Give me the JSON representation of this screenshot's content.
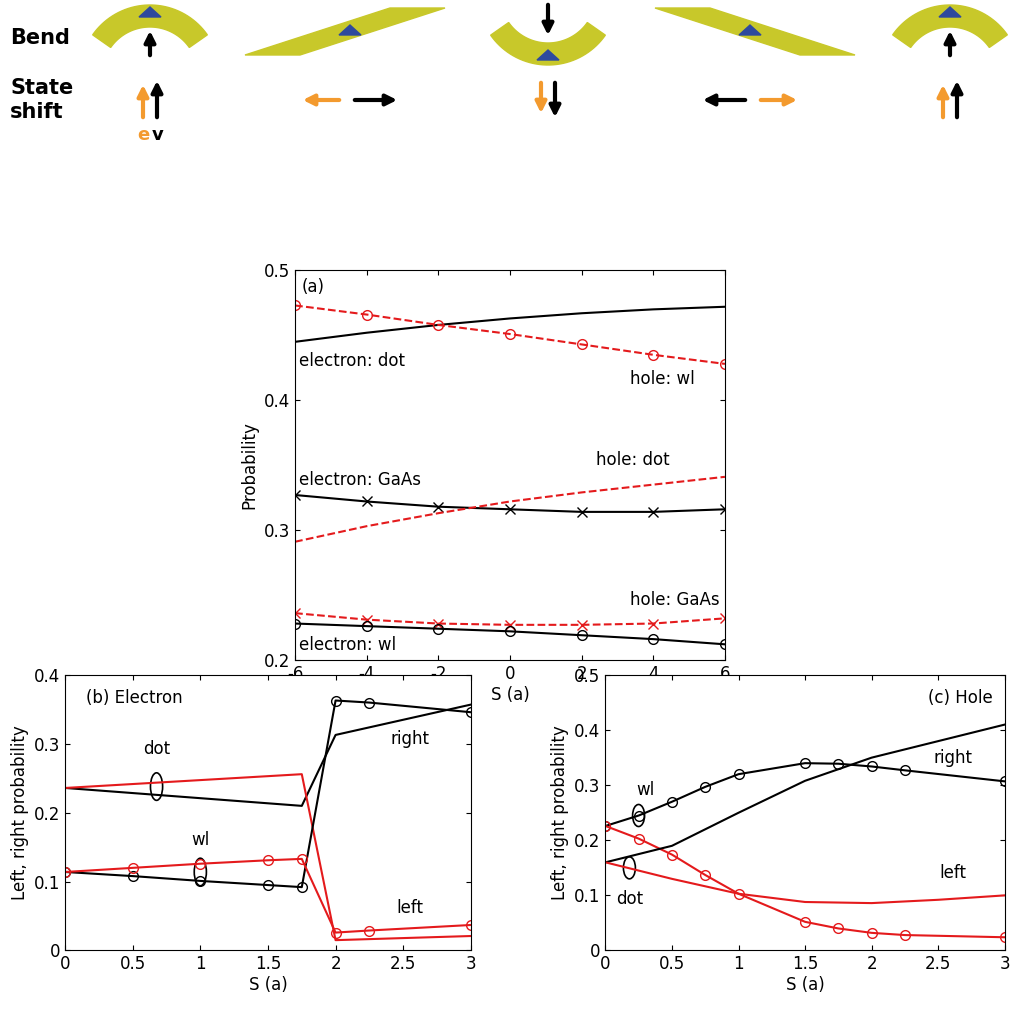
{
  "diagram": {
    "row_labels": [
      "Bend",
      "State\nshift"
    ],
    "state_labels": [
      {
        "text": "e",
        "color": "#f39a2e"
      },
      {
        "text": "v",
        "color": "#000000"
      }
    ]
  },
  "chart_data": [
    {
      "type": "line",
      "title": "(a)",
      "x_label": "S (a)",
      "y_label": "Probability",
      "x": [
        -6,
        -4,
        -2,
        0,
        2,
        4,
        6
      ],
      "xlim": [
        -6,
        6
      ],
      "xticks": [
        -6,
        -4,
        -2,
        0,
        2,
        4,
        6
      ],
      "ylim": [
        0.2,
        0.5
      ],
      "yticks": [
        0.2,
        0.3,
        0.4,
        0.5
      ],
      "series": [
        {
          "name": "electron: dot",
          "color": "#000000",
          "line_style": "solid",
          "marker": "none",
          "values": [
            0.445,
            0.452,
            0.458,
            0.463,
            0.467,
            0.47,
            0.472
          ]
        },
        {
          "name": "hole: wl",
          "color": "#e41a1c",
          "line_style": "dashed",
          "marker": "circle",
          "values": [
            0.473,
            0.466,
            0.458,
            0.451,
            0.443,
            0.435,
            0.428
          ]
        },
        {
          "name": "electron: GaAs",
          "color": "#000000",
          "line_style": "solid",
          "marker": "x",
          "values": [
            0.327,
            0.322,
            0.318,
            0.316,
            0.314,
            0.314,
            0.316
          ]
        },
        {
          "name": "hole: dot",
          "color": "#e41a1c",
          "line_style": "dashed",
          "marker": "none",
          "values": [
            0.291,
            0.303,
            0.313,
            0.322,
            0.329,
            0.335,
            0.341
          ]
        },
        {
          "name": "hole: GaAs",
          "color": "#e41a1c",
          "line_style": "dashed",
          "marker": "x",
          "values": [
            0.236,
            0.231,
            0.228,
            0.227,
            0.227,
            0.228,
            0.232
          ]
        },
        {
          "name": "electron: wl",
          "color": "#000000",
          "line_style": "solid",
          "marker": "circle",
          "values": [
            0.228,
            0.226,
            0.224,
            0.222,
            0.219,
            0.216,
            0.212
          ]
        }
      ]
    },
    {
      "type": "line",
      "title": "(b) Electron",
      "x_label": "S (a)",
      "y_label": "Left, right probability",
      "xlim": [
        0,
        3
      ],
      "xticks": [
        0,
        0.5,
        1,
        1.5,
        2,
        2.5,
        3
      ],
      "ylim": [
        0,
        0.4
      ],
      "yticks": [
        0,
        0.1,
        0.2,
        0.3,
        0.4
      ],
      "annotations": [
        "dot",
        "wl",
        "right",
        "left"
      ],
      "series": [
        {
          "color": "#000000",
          "line_style": "solid",
          "marker": "none",
          "x": [
            0,
            1.75,
            2,
            3
          ],
          "values": [
            0.236,
            0.21,
            0.313,
            0.357
          ]
        },
        {
          "color": "#e41a1c",
          "line_style": "solid",
          "marker": "none",
          "x": [
            0,
            1.75,
            2,
            3
          ],
          "values": [
            0.236,
            0.256,
            0.015,
            0.021
          ]
        },
        {
          "color": "#000000",
          "line_style": "solid",
          "marker": "circle",
          "x": [
            0,
            0.5,
            1,
            1.5,
            1.75,
            2,
            2.25,
            3
          ],
          "values": [
            0.114,
            0.108,
            0.101,
            0.095,
            0.092,
            0.363,
            0.36,
            0.346
          ]
        },
        {
          "color": "#e41a1c",
          "line_style": "solid",
          "marker": "circle",
          "x": [
            0,
            0.5,
            1,
            1.5,
            1.75,
            2,
            2.25,
            3
          ],
          "values": [
            0.114,
            0.12,
            0.126,
            0.131,
            0.133,
            0.026,
            0.029,
            0.037
          ]
        }
      ]
    },
    {
      "type": "line",
      "title": "(c) Hole",
      "x_label": "S (a)",
      "y_label": "Left, right probability",
      "xlim": [
        0,
        3
      ],
      "xticks": [
        0,
        0.5,
        1,
        1.5,
        2,
        2.5,
        3
      ],
      "ylim": [
        0,
        0.5
      ],
      "yticks": [
        0,
        0.1,
        0.2,
        0.3,
        0.4,
        0.5
      ],
      "annotations": [
        "wl",
        "dot",
        "right",
        "left"
      ],
      "series": [
        {
          "color": "#000000",
          "line_style": "solid",
          "marker": "circle",
          "x": [
            0,
            0.25,
            0.5,
            0.75,
            1,
            1.5,
            1.75,
            2,
            2.25,
            3
          ],
          "values": [
            0.226,
            0.245,
            0.27,
            0.297,
            0.32,
            0.34,
            0.339,
            0.334,
            0.327,
            0.307
          ]
        },
        {
          "color": "#e41a1c",
          "line_style": "solid",
          "marker": "circle",
          "x": [
            0,
            0.25,
            0.5,
            0.75,
            1,
            1.5,
            1.75,
            2,
            2.25,
            3
          ],
          "values": [
            0.226,
            0.203,
            0.174,
            0.137,
            0.103,
            0.052,
            0.04,
            0.032,
            0.028,
            0.024
          ]
        },
        {
          "color": "#000000",
          "line_style": "solid",
          "marker": "none",
          "x": [
            0,
            0.5,
            1,
            1.5,
            2,
            2.5,
            3
          ],
          "values": [
            0.16,
            0.19,
            0.25,
            0.308,
            0.35,
            0.38,
            0.41
          ]
        },
        {
          "color": "#e41a1c",
          "line_style": "solid",
          "marker": "none",
          "x": [
            0,
            0.5,
            1,
            1.5,
            2,
            2.5,
            3
          ],
          "values": [
            0.16,
            0.13,
            0.103,
            0.088,
            0.086,
            0.092,
            0.1
          ]
        }
      ]
    }
  ]
}
